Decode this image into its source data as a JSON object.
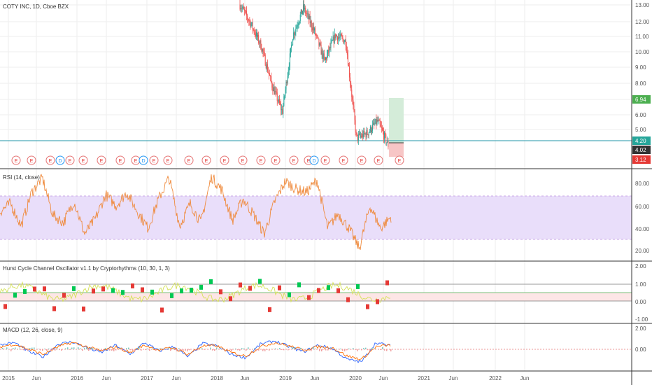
{
  "colors": {
    "up": "#26a69a",
    "down": "#ef5350",
    "rsi_line": "#ef8a3c",
    "rsi_band": "#e9defa",
    "macd_line": "#2962ff",
    "signal_line": "#ff6d00",
    "hurst_green": "#00c853",
    "hurst_red": "#e53935",
    "hurst_yellow": "#d4e157",
    "tp_zone": "#d4ecd9",
    "sl_zone": "#f7c6c6",
    "grid": "#eeeeee",
    "divider": "#333333",
    "hline": "#2196a8"
  },
  "main": {
    "title": "COTY INC, 1D, Cboe BZX",
    "yticks": [
      "13.00",
      "12.00",
      "11.00",
      "10.00",
      "9.00",
      "8.00",
      "7.00",
      "6.00",
      "5.00"
    ],
    "price_tags": [
      {
        "value": "6.94",
        "color": "#4caf50"
      },
      {
        "value": "4.20",
        "color": "#26a69a"
      },
      {
        "value": "4.02",
        "color": "#333333"
      },
      {
        "value": "3.12",
        "color": "#e53935"
      }
    ],
    "events": [
      "E",
      "E",
      "E",
      "D",
      "E",
      "E",
      "E",
      "E",
      "E",
      "D",
      "E",
      "E",
      "E",
      "E",
      "E",
      "E",
      "E",
      "E",
      "E",
      "E",
      "D",
      "E",
      "E",
      "E",
      "E",
      "E"
    ]
  },
  "rsi": {
    "title": "RSI (14, close)",
    "yticks": [
      "80.00",
      "60.00",
      "40.00",
      "20.00"
    ]
  },
  "hurst": {
    "title": "Hurst Cycle Channel Oscillator v1.1 by Cryptorhythms (10, 30, 1, 3)",
    "yticks": [
      "2.00",
      "1.00",
      "0.00",
      "-1.00"
    ]
  },
  "macd": {
    "title": "MACD (12, 26, close, 9)",
    "yticks": [
      "2.00",
      "0.00"
    ]
  },
  "xaxis": {
    "labels": [
      "2015",
      "Jun",
      "2016",
      "Jun",
      "2017",
      "Jun",
      "2018",
      "Jun",
      "2019",
      "Jun",
      "2020",
      "Jun",
      "2021",
      "Jun",
      "2022",
      "Jun"
    ]
  },
  "chart_data": [
    {
      "type": "line",
      "title": "COTY INC, 1D, Cboe BZX",
      "x": [
        "2018-06",
        "2018-08",
        "2018-10",
        "2018-12",
        "2019-01",
        "2019-03",
        "2019-05",
        "2019-07",
        "2019-09",
        "2019-11",
        "2020-01",
        "2020-03",
        "2020-04",
        "2020-05",
        "2020-06"
      ],
      "series": [
        {
          "values": [
            13.2,
            12.0,
            10.5,
            8.0,
            6.2,
            11.2,
            13.0,
            11.5,
            9.5,
            11.2,
            10.8,
            4.5,
            4.8,
            5.6,
            4.02
          ]
        }
      ],
      "ylim": [
        3,
        13.5
      ]
    },
    {
      "type": "line",
      "title": "RSI (14, close)",
      "series": [
        {
          "values": [
            55,
            62,
            42,
            72,
            85,
            52,
            45,
            64,
            35,
            48,
            70,
            60,
            72,
            55,
            40,
            66,
            85,
            42,
            62,
            45,
            86,
            74,
            47,
            66,
            52,
            35,
            64,
            82,
            75,
            72,
            83,
            40,
            53,
            40,
            22,
            60,
            40,
            50
          ]
        }
      ],
      "ylim": [
        15,
        88
      ]
    },
    {
      "type": "line",
      "title": "MACD (12, 26, close, 9)",
      "series": [
        {
          "values": [
            0.5,
            0.8,
            -0.3,
            -0.9,
            0.6,
            0.9,
            0.2,
            -0.4,
            0.5,
            -0.6,
            0.8,
            -0.2,
            0.3,
            -0.9,
            0.7,
            0.4,
            -0.6,
            -1.0,
            0.6,
            1.0,
            0.3,
            -0.3,
            0.5,
            0.1,
            -1.2,
            -1.5,
            0.8,
            0.4
          ]
        },
        {
          "values": [
            0.3,
            0.6,
            0.0,
            -0.6,
            0.3,
            0.8,
            0.3,
            -0.2,
            0.3,
            -0.4,
            0.5,
            -0.1,
            0.2,
            -0.6,
            0.4,
            0.4,
            -0.4,
            -0.8,
            0.3,
            0.8,
            0.4,
            -0.1,
            0.3,
            0.2,
            -0.8,
            -1.2,
            0.3,
            0.5
          ]
        }
      ],
      "ylim": [
        -2.5,
        2.5
      ]
    }
  ]
}
